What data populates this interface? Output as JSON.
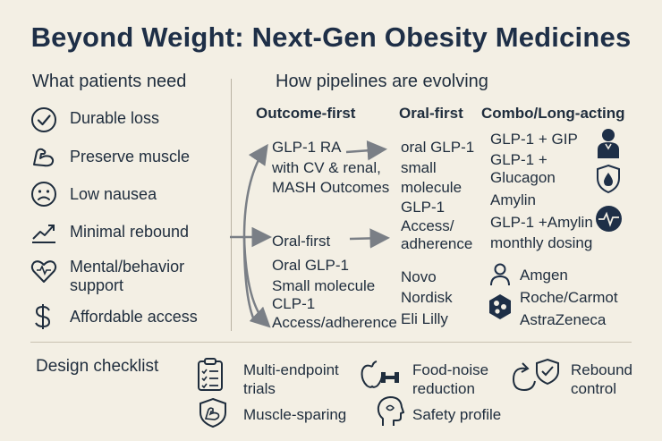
{
  "title": "Beyond Weight: Next-Gen Obesity Medicines",
  "needs": {
    "heading": "What patients need",
    "items": [
      {
        "label": "Durable loss",
        "icon": "check-circle-icon"
      },
      {
        "label": "Preserve muscle",
        "icon": "flexed-arm-icon"
      },
      {
        "label": "Low nausea",
        "icon": "sad-face-icon"
      },
      {
        "label": "Minimal rebound",
        "icon": "trend-up-icon"
      },
      {
        "label": "Mental/behavior support",
        "icon": "heart-icon"
      },
      {
        "label": "Affordable access",
        "icon": "dollar-icon"
      }
    ]
  },
  "pipelines": {
    "heading": "How pipelines are evolving",
    "col1": {
      "heading": "Outcome-first",
      "block1": [
        "GLP-1 RA",
        "with CV & renal,",
        "MASH Outcomes"
      ],
      "block2_title": "Oral-first",
      "block2": [
        "Oral GLP-1",
        "Small molecule",
        "CLP-1",
        "Access/adherence"
      ]
    },
    "col2": {
      "heading": "Oral-first",
      "block1": [
        "oral GLP-1",
        "small",
        "molecule",
        "GLP-1",
        "Access/",
        "adherence"
      ],
      "companies": [
        "Novo",
        "Nordisk",
        "Eli Lilly"
      ]
    },
    "col3": {
      "heading": "Combo/Long-acting",
      "items": [
        "GLP-1 + GIP",
        "GLP-1 +",
        "Glucagon",
        "Amylin",
        "GLP-1 +Amylin",
        "monthly dosing"
      ],
      "companies": [
        "Amgen",
        "Roche/Carmot",
        "AstraZeneca"
      ]
    }
  },
  "checklist": {
    "heading": "Design checklist",
    "items": [
      {
        "label": [
          "Multi-endpoint",
          "trials"
        ],
        "icon": "clipboard-checklist-icon"
      },
      {
        "label": [
          "Food-noise",
          "reduction"
        ],
        "icon": "apple-dumbbell-icon"
      },
      {
        "label": [
          "Rebound",
          "control"
        ],
        "icon": "rebound-shield-icon"
      },
      {
        "label": [
          "Muscle-sparing"
        ],
        "icon": "shield-arm-icon"
      },
      {
        "label": [
          "Safety profile"
        ],
        "icon": "head-profile-icon"
      }
    ]
  }
}
